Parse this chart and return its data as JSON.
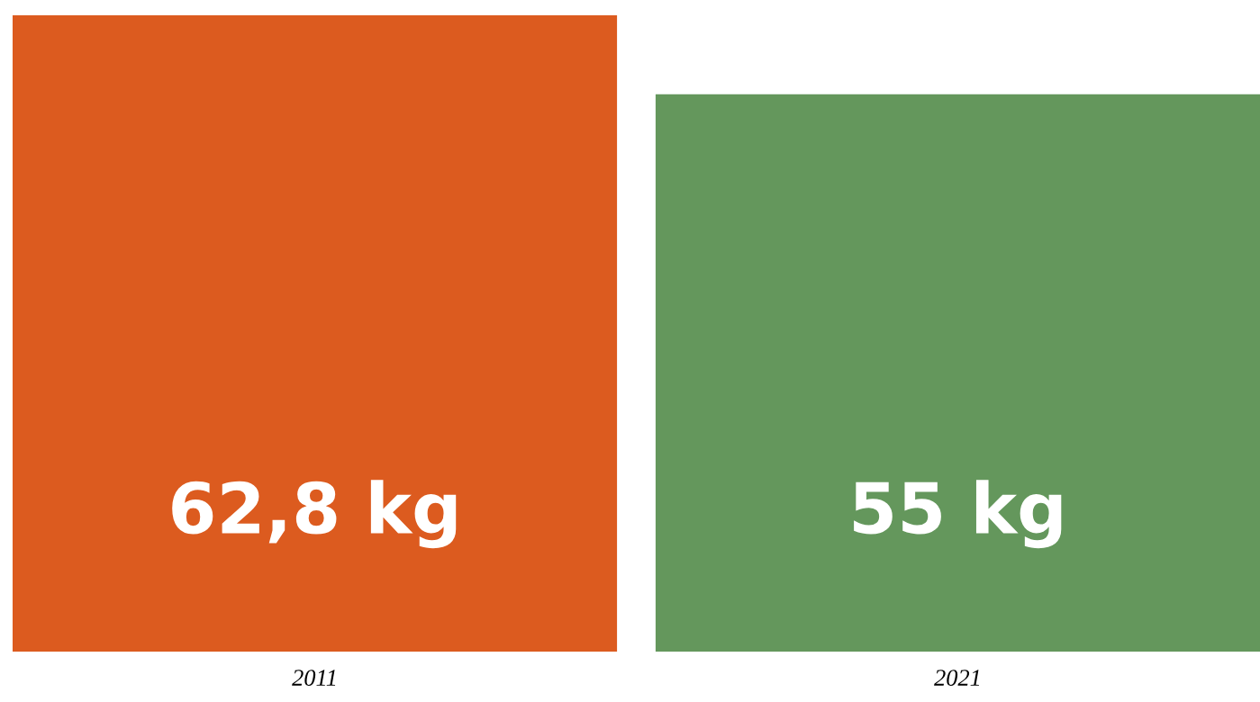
{
  "chart_data": {
    "type": "bar",
    "categories": [
      "2011",
      "2021"
    ],
    "values": [
      62.8,
      55
    ],
    "colors": [
      "#dc5b1f",
      "#64975c"
    ],
    "value_labels": [
      "62,8 kg",
      "55 kg"
    ]
  }
}
